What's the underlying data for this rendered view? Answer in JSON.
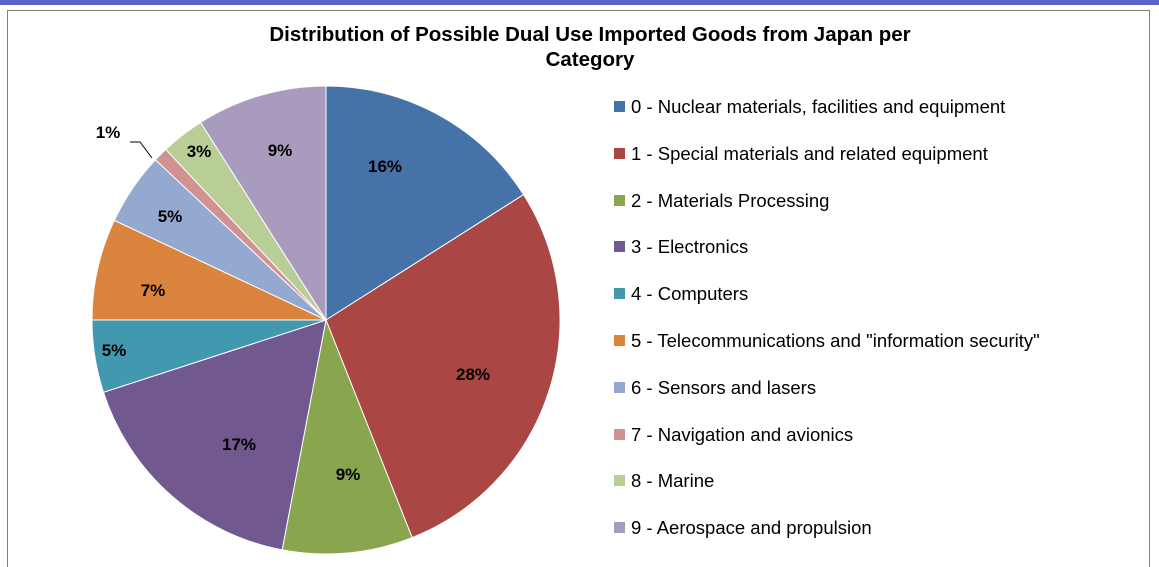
{
  "chart_data": {
    "type": "pie",
    "title": "Distribution of Possible Dual Use Imported Goods from Japan per Category",
    "title_lines": [
      "Distribution of Possible Dual Use Imported Goods from Japan per",
      "Category"
    ],
    "categories": [
      "0 - Nuclear materials, facilities and equipment",
      "1 - Special materials and related equipment",
      "2 - Materials Processing",
      "3 - Electronics",
      "4 - Computers",
      "5 - Telecommunications and \"information security\"",
      "6 - Sensors and lasers",
      "7 - Navigation and avionics",
      "8 - Marine",
      "9 - Aerospace and propulsion"
    ],
    "values": [
      16,
      28,
      9,
      17,
      5,
      7,
      5,
      1,
      3,
      9
    ],
    "labels": [
      "16%",
      "28%",
      "9%",
      "17%",
      "5%",
      "7%",
      "5%",
      "1%",
      "3%",
      "9%"
    ],
    "colors": [
      "#4573a7",
      "#aa4643",
      "#89a54e",
      "#71588f",
      "#4198af",
      "#db843d",
      "#93a9cf",
      "#d19392",
      "#b9cd96",
      "#a99bbd"
    ],
    "legend_position": "right"
  }
}
